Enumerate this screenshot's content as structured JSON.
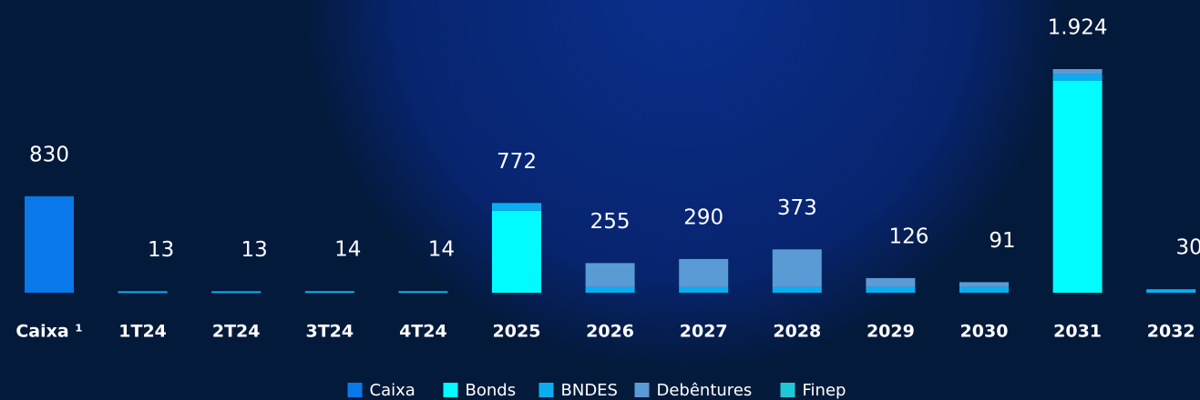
{
  "chart_data": {
    "type": "stacked_bar",
    "categories": [
      "Caixa ¹",
      "1T24",
      "2T24",
      "3T24",
      "4T24",
      "2025",
      "2026",
      "2027",
      "2028",
      "2029",
      "2030",
      "2031",
      "2032"
    ],
    "series": [
      {
        "name": "Caixa",
        "color": "#0a78e8",
        "values": [
          830,
          null,
          null,
          null,
          null,
          null,
          null,
          null,
          null,
          null,
          null,
          null,
          null
        ]
      },
      {
        "name": "Bonds",
        "color": "#00fcff",
        "values": [
          null,
          null,
          null,
          null,
          null,
          705,
          null,
          null,
          null,
          null,
          null,
          1825,
          null
        ]
      },
      {
        "name": "BNDES",
        "color": "#0aaef0",
        "values": [
          null,
          13,
          13,
          14,
          14,
          67,
          50,
          50,
          50,
          50,
          50,
          55,
          30
        ]
      },
      {
        "name": "Debêntures",
        "color": "#5b9bd5",
        "values": [
          null,
          null,
          null,
          null,
          null,
          null,
          205,
          240,
          323,
          76,
          41,
          44,
          null
        ]
      },
      {
        "name": "Finep",
        "color": "#1ec8d8",
        "values": [
          null,
          null,
          null,
          null,
          null,
          null,
          null,
          null,
          null,
          null,
          null,
          null,
          null
        ]
      }
    ],
    "totals": [
      830,
      13,
      13,
      14,
      14,
      772,
      255,
      290,
      373,
      126,
      91,
      1924,
      30
    ],
    "totals_labels": [
      "830",
      "13",
      "13",
      "14",
      "14",
      "772",
      "255",
      "290",
      "373",
      "126",
      "91",
      "1.924",
      "30"
    ],
    "legend": "bottom"
  }
}
